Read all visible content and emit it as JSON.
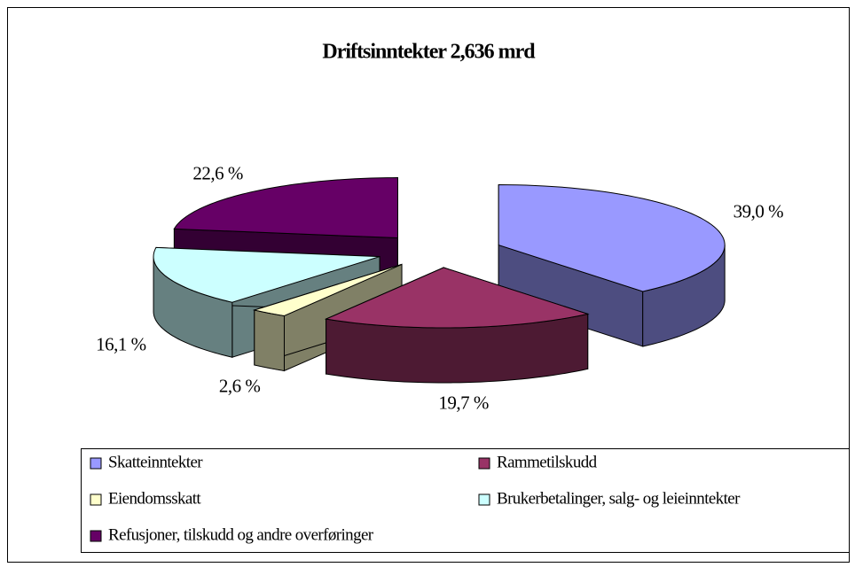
{
  "chart_data": {
    "type": "pie3d",
    "title": "Driftsinntekter 2,636 mrd",
    "categories": [
      "Skatteinntekter",
      "Rammetilskudd",
      "Eiendomsskatt",
      "Brukerbetalinger, salg- og leieinntekter",
      "Refusjoner, tilskudd og andre overføringer"
    ],
    "values": [
      39.0,
      19.7,
      2.6,
      16.1,
      22.6
    ],
    "value_labels": [
      "39,0 %",
      "19,7 %",
      "2,6 %",
      "16,1 %",
      "22,6 %"
    ],
    "colors": [
      "#9999ff",
      "#993366",
      "#ffffcc",
      "#ccffff",
      "#660066"
    ],
    "legend": "bottom"
  }
}
